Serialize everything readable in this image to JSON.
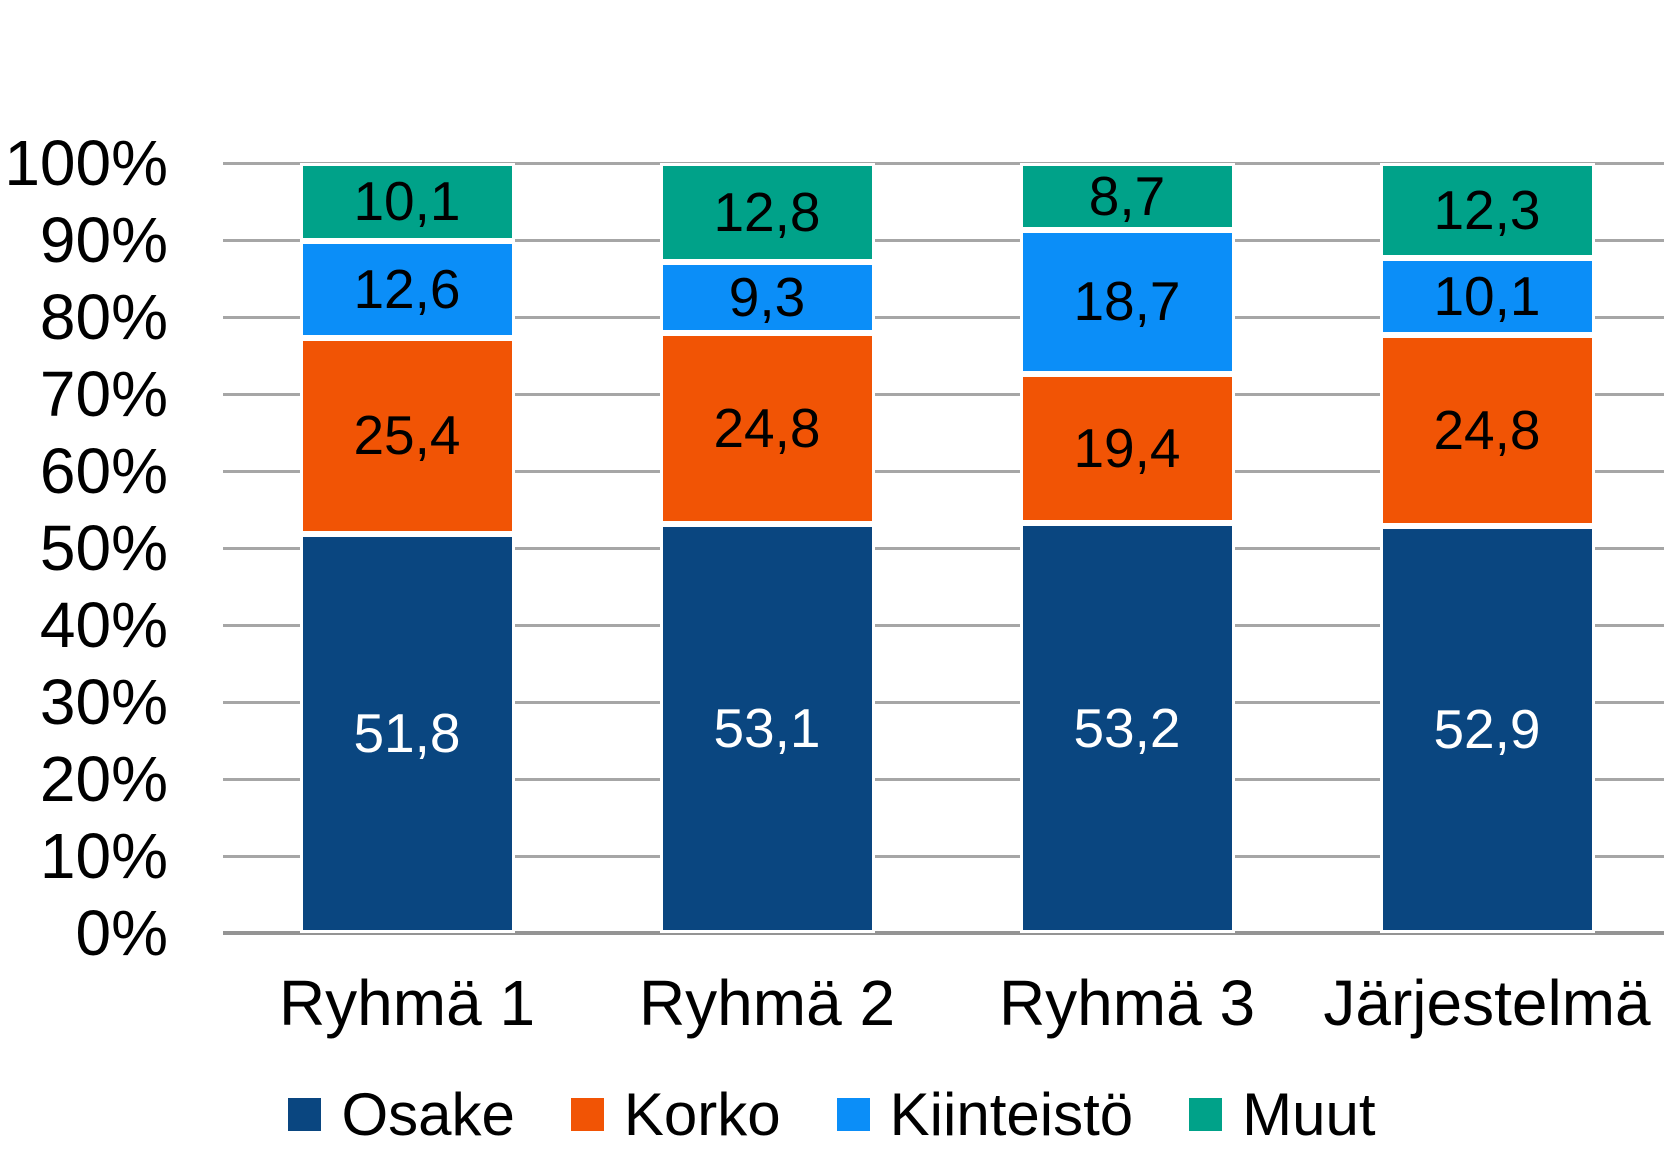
{
  "chart_data": {
    "type": "bar",
    "stacked": true,
    "percent_stacked": true,
    "title": "",
    "xlabel": "",
    "ylabel": "",
    "categories": [
      "Ryhmä 1",
      "Ryhmä 2",
      "Ryhmä 3",
      "Järjestelmä"
    ],
    "series": [
      {
        "name": "Osake",
        "color": "#0a4680",
        "label_color": "#ffffff",
        "values": [
          51.8,
          53.1,
          53.2,
          52.9
        ],
        "labels": [
          "51,8",
          "53,1",
          "53,2",
          "52,9"
        ]
      },
      {
        "name": "Korko",
        "color": "#f15405",
        "label_color": "#000000",
        "values": [
          25.4,
          24.8,
          19.4,
          24.8
        ],
        "labels": [
          "25,4",
          "24,8",
          "19,4",
          "24,8"
        ]
      },
      {
        "name": "Kiinteistö",
        "color": "#0b8ef8",
        "label_color": "#000000",
        "values": [
          12.6,
          9.3,
          18.7,
          10.1
        ],
        "labels": [
          "12,6",
          "9,3",
          "18,7",
          "10,1"
        ]
      },
      {
        "name": "Muut",
        "color": "#00a289",
        "label_color": "#000000",
        "values": [
          10.1,
          12.8,
          8.7,
          12.3
        ],
        "labels": [
          "10,1",
          "12,8",
          "8,7",
          "12,3"
        ]
      }
    ],
    "y_axis": {
      "min": 0,
      "max": 100,
      "tick_step": 10,
      "ticks": [
        "100%",
        "90%",
        "80%",
        "70%",
        "60%",
        "50%",
        "40%",
        "30%",
        "20%",
        "10%",
        "0%"
      ],
      "grid": true
    },
    "legend": {
      "position": "bottom",
      "items": [
        "Osake",
        "Korko",
        "Kiinteistö",
        "Muut"
      ]
    },
    "colors": {
      "grid": "#a6a6a6",
      "axis_line": "#949494",
      "background": "#ffffff"
    }
  }
}
